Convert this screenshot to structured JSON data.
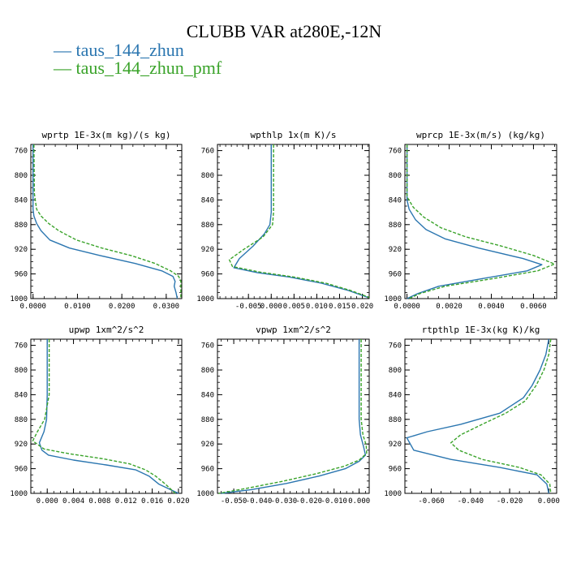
{
  "title": "CLUBB VAR at280E,-12N",
  "legend": [
    {
      "label": "taus_144_zhun",
      "color": "#2b76b0",
      "dash": false
    },
    {
      "label": "taus_144_zhun_pmf",
      "color": "#3aa32a",
      "dash": true
    }
  ],
  "chart_data": [
    {
      "type": "line",
      "title": "wprtp  1E-3x(m kg)/(s kg)",
      "xlim": [
        -0.0005,
        0.0335
      ],
      "ylim": [
        750,
        1000
      ],
      "y_reversed": true,
      "yticks": [
        760,
        800,
        840,
        880,
        920,
        960,
        1000
      ],
      "xticks": [
        0.0,
        0.01,
        0.02,
        0.03
      ],
      "xtick_labels": [
        "0.0000",
        "0.0100",
        "0.0200",
        "0.0300"
      ],
      "x_minor": 0.0025,
      "series": [
        {
          "name": "taus_144_zhun",
          "points": [
            [
              0.0,
              750
            ],
            [
              0.0,
              830
            ],
            [
              0.0,
              855
            ],
            [
              0.0002,
              866
            ],
            [
              0.0008,
              878
            ],
            [
              0.0018,
              890
            ],
            [
              0.0038,
              905
            ],
            [
              0.0082,
              918
            ],
            [
              0.015,
              930
            ],
            [
              0.023,
              943
            ],
            [
              0.029,
              955
            ],
            [
              0.0315,
              964
            ],
            [
              0.032,
              972
            ],
            [
              0.0318,
              980
            ],
            [
              0.0322,
              990
            ],
            [
              0.0325,
              1000
            ]
          ]
        },
        {
          "name": "taus_144_zhun_pmf",
          "points": [
            [
              0.0002,
              750
            ],
            [
              0.0003,
              830
            ],
            [
              0.0008,
              855
            ],
            [
              0.0018,
              866
            ],
            [
              0.0035,
              878
            ],
            [
              0.0058,
              890
            ],
            [
              0.0098,
              905
            ],
            [
              0.0155,
              918
            ],
            [
              0.022,
              930
            ],
            [
              0.0275,
              943
            ],
            [
              0.031,
              955
            ],
            [
              0.0328,
              964
            ],
            [
              0.0333,
              972
            ],
            [
              0.0333,
              980
            ],
            [
              0.0333,
              990
            ],
            [
              0.0333,
              1000
            ]
          ]
        }
      ]
    },
    {
      "type": "line",
      "title": "wpthlp  1x(m K)/s",
      "xlim": [
        -0.0118,
        0.0215
      ],
      "ylim": [
        750,
        1000
      ],
      "y_reversed": true,
      "yticks": [
        760,
        800,
        840,
        880,
        920,
        960,
        1000
      ],
      "xticks": [
        -0.005,
        0.0,
        0.005,
        0.01,
        0.015,
        0.02
      ],
      "xtick_labels": [
        "-0.005",
        "0.000",
        "0.005",
        "0.010",
        "0.015",
        "0.020"
      ],
      "x_minor": 0.00125,
      "series": [
        {
          "name": "taus_144_zhun",
          "points": [
            [
              0.0,
              750
            ],
            [
              0.0,
              830
            ],
            [
              0.0,
              860
            ],
            [
              -0.0003,
              880
            ],
            [
              -0.0015,
              895
            ],
            [
              -0.004,
              915
            ],
            [
              -0.007,
              935
            ],
            [
              -0.0082,
              950
            ],
            [
              -0.003,
              958
            ],
            [
              0.004,
              965
            ],
            [
              0.011,
              975
            ],
            [
              0.017,
              987
            ],
            [
              0.0212,
              998
            ]
          ]
        },
        {
          "name": "taus_144_zhun_pmf",
          "points": [
            [
              0.0005,
              750
            ],
            [
              0.0005,
              830
            ],
            [
              0.0005,
              860
            ],
            [
              0.0003,
              880
            ],
            [
              -0.0018,
              900
            ],
            [
              -0.006,
              920
            ],
            [
              -0.0092,
              937
            ],
            [
              -0.0085,
              948
            ],
            [
              -0.0025,
              957
            ],
            [
              0.005,
              965
            ],
            [
              0.012,
              975
            ],
            [
              0.0175,
              987
            ],
            [
              0.0215,
              998
            ]
          ]
        }
      ]
    },
    {
      "type": "line",
      "title": "wprcp  1E-3x(m/s) (kg/kg)",
      "xlim": [
        -0.0001,
        0.0071
      ],
      "ylim": [
        750,
        1000
      ],
      "y_reversed": true,
      "yticks": [
        760,
        800,
        840,
        880,
        920,
        960,
        1000
      ],
      "xticks": [
        0.0,
        0.002,
        0.004,
        0.006
      ],
      "xtick_labels": [
        "0.0000",
        "0.0020",
        "0.0040",
        "0.0060"
      ],
      "x_minor": 0.0005,
      "series": [
        {
          "name": "taus_144_zhun",
          "points": [
            [
              0.0,
              750
            ],
            [
              0.0,
              840
            ],
            [
              0.0001,
              855
            ],
            [
              0.0004,
              872
            ],
            [
              0.0009,
              888
            ],
            [
              0.0018,
              903
            ],
            [
              0.0034,
              918
            ],
            [
              0.0055,
              935
            ],
            [
              0.0064,
              945
            ],
            [
              0.0057,
              955
            ],
            [
              0.0035,
              968
            ],
            [
              0.0015,
              980
            ],
            [
              0.0005,
              992
            ],
            [
              0.0,
              1000
            ]
          ]
        },
        {
          "name": "taus_144_zhun_pmf",
          "points": [
            [
              0.0,
              750
            ],
            [
              0.0,
              835
            ],
            [
              0.0003,
              852
            ],
            [
              0.0008,
              868
            ],
            [
              0.0016,
              885
            ],
            [
              0.0028,
              900
            ],
            [
              0.0045,
              915
            ],
            [
              0.006,
              930
            ],
            [
              0.007,
              944
            ],
            [
              0.0062,
              955
            ],
            [
              0.004,
              968
            ],
            [
              0.0018,
              980
            ],
            [
              0.0006,
              992
            ],
            [
              0.0001,
              1000
            ]
          ]
        }
      ]
    },
    {
      "type": "line",
      "title": "upwp  1xm^2/s^2",
      "xlim": [
        -0.0025,
        0.0205
      ],
      "ylim": [
        750,
        1000
      ],
      "y_reversed": true,
      "yticks": [
        760,
        800,
        840,
        880,
        920,
        960,
        1000
      ],
      "xticks": [
        0.0,
        0.004,
        0.008,
        0.012,
        0.016,
        0.02
      ],
      "xtick_labels": [
        "0.000",
        "0.004",
        "0.008",
        "0.012",
        "0.016",
        "0.020"
      ],
      "x_minor": 0.001,
      "series": [
        {
          "name": "taus_144_zhun",
          "points": [
            [
              0.0,
              750
            ],
            [
              0.0,
              840
            ],
            [
              -0.0001,
              880
            ],
            [
              -0.0005,
              900
            ],
            [
              -0.0012,
              918
            ],
            [
              -0.0008,
              930
            ],
            [
              0.0002,
              938
            ],
            [
              0.004,
              946
            ],
            [
              0.009,
              954
            ],
            [
              0.0135,
              962
            ],
            [
              0.0155,
              972
            ],
            [
              0.017,
              985
            ],
            [
              0.019,
              995
            ],
            [
              0.02,
              1000
            ]
          ]
        },
        {
          "name": "taus_144_zhun_pmf",
          "points": [
            [
              0.0003,
              750
            ],
            [
              0.0003,
              840
            ],
            [
              -0.0004,
              880
            ],
            [
              -0.0015,
              900
            ],
            [
              -0.0022,
              915
            ],
            [
              -0.0005,
              928
            ],
            [
              0.0035,
              936
            ],
            [
              0.0085,
              944
            ],
            [
              0.0125,
              952
            ],
            [
              0.015,
              962
            ],
            [
              0.0165,
              972
            ],
            [
              0.018,
              985
            ],
            [
              0.019,
              995
            ],
            [
              0.0195,
              1000
            ]
          ]
        }
      ]
    },
    {
      "type": "line",
      "title": "vpwp  1xm^2/s^2",
      "xlim": [
        -0.0565,
        0.004
      ],
      "ylim": [
        750,
        1000
      ],
      "y_reversed": true,
      "yticks": [
        760,
        800,
        840,
        880,
        920,
        960,
        1000
      ],
      "xticks": [
        -0.05,
        -0.04,
        -0.03,
        -0.02,
        -0.01,
        0.0
      ],
      "xtick_labels": [
        "-0.050",
        "-0.040",
        "-0.030",
        "-0.020",
        "-0.010",
        "0.000"
      ],
      "x_minor": 0.0025,
      "series": [
        {
          "name": "taus_144_zhun",
          "points": [
            [
              0.0,
              750
            ],
            [
              0.0,
              880
            ],
            [
              0.0005,
              905
            ],
            [
              0.0018,
              925
            ],
            [
              0.0025,
              938
            ],
            [
              0.0,
              948
            ],
            [
              -0.0055,
              960
            ],
            [
              -0.016,
              972
            ],
            [
              -0.029,
              984
            ],
            [
              -0.043,
              994
            ],
            [
              -0.055,
              1000
            ]
          ]
        },
        {
          "name": "taus_144_zhun_pmf",
          "points": [
            [
              0.0008,
              750
            ],
            [
              0.0008,
              880
            ],
            [
              0.0015,
              905
            ],
            [
              0.0028,
              922
            ],
            [
              0.003,
              935
            ],
            [
              0.0,
              946
            ],
            [
              -0.006,
              956
            ],
            [
              -0.017,
              968
            ],
            [
              -0.03,
              980
            ],
            [
              -0.045,
              992
            ],
            [
              -0.056,
              1000
            ]
          ]
        }
      ]
    },
    {
      "type": "line",
      "title": "rtpthlp  1E-3x(kg K)/kg",
      "xlim": [
        -0.0735,
        0.004
      ],
      "ylim": [
        750,
        1000
      ],
      "y_reversed": true,
      "yticks": [
        760,
        800,
        840,
        880,
        920,
        960,
        1000
      ],
      "xticks": [
        -0.06,
        -0.04,
        -0.02,
        0.0
      ],
      "xtick_labels": [
        "-0.060",
        "-0.040",
        "-0.020",
        "0.000"
      ],
      "x_minor": 0.005,
      "series": [
        {
          "name": "taus_144_zhun",
          "points": [
            [
              0.0,
              750
            ],
            [
              -0.0015,
              775
            ],
            [
              -0.0045,
              800
            ],
            [
              -0.0085,
              825
            ],
            [
              -0.013,
              845
            ],
            [
              -0.025,
              870
            ],
            [
              -0.045,
              888
            ],
            [
              -0.062,
              900
            ],
            [
              -0.0725,
              910
            ],
            [
              -0.069,
              930
            ],
            [
              -0.05,
              945
            ],
            [
              -0.025,
              958
            ],
            [
              -0.006,
              970
            ],
            [
              -0.001,
              985
            ],
            [
              0.0,
              1000
            ]
          ]
        },
        {
          "name": "taus_144_zhun_pmf",
          "points": [
            [
              0.001,
              750
            ],
            [
              0.0,
              775
            ],
            [
              -0.0025,
              800
            ],
            [
              -0.0065,
              825
            ],
            [
              -0.012,
              850
            ],
            [
              -0.022,
              870
            ],
            [
              -0.032,
              885
            ],
            [
              -0.045,
              905
            ],
            [
              -0.05,
              918
            ],
            [
              -0.046,
              930
            ],
            [
              -0.034,
              945
            ],
            [
              -0.015,
              958
            ],
            [
              -0.004,
              970
            ],
            [
              0.0005,
              985
            ],
            [
              0.001,
              1000
            ]
          ]
        }
      ]
    }
  ]
}
